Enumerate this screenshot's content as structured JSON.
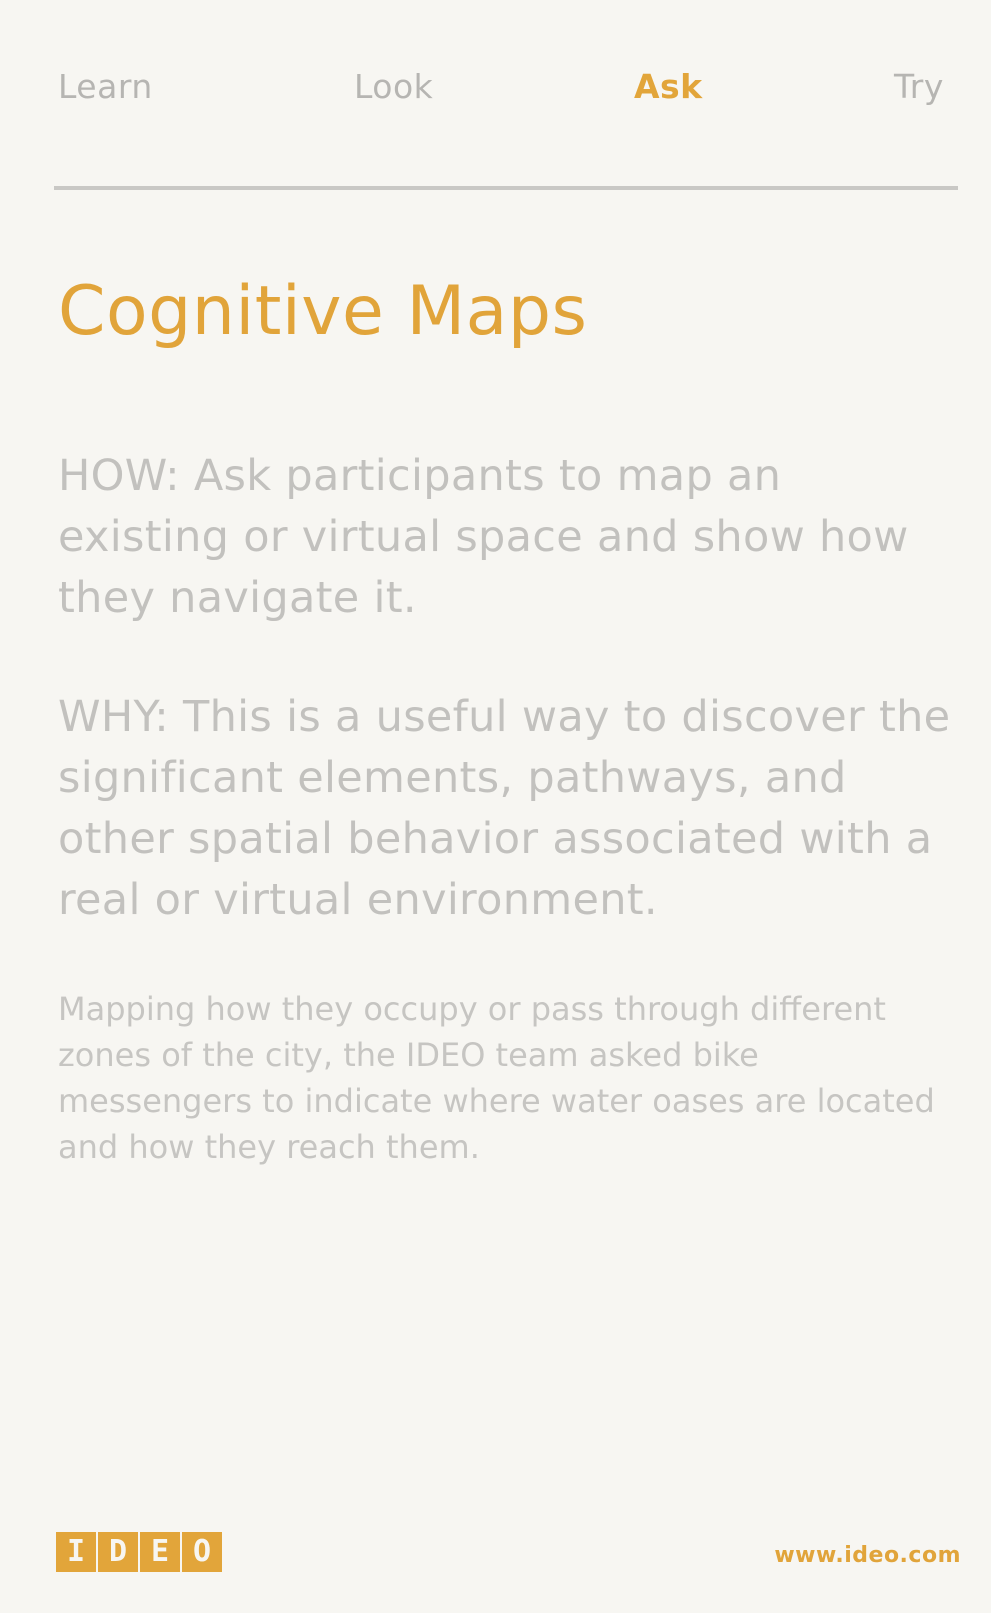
{
  "nav": {
    "tabs": [
      {
        "label": "Learn",
        "active": false
      },
      {
        "label": "Look",
        "active": false
      },
      {
        "label": "Ask",
        "active": true
      },
      {
        "label": "Try",
        "active": false
      }
    ]
  },
  "card": {
    "title": "Cognitive Maps",
    "how": "HOW: Ask participants to map an existing or virtual space and show how they navigate it.",
    "why": "WHY: This is a useful way to discover the significant elements, pathways, and other spatial behavior associated with a real or virtual environment.",
    "example": "Mapping how they occupy or pass through different zones of the city, the IDEO team asked bike messengers to indicate where water oases are located and how they reach them."
  },
  "footer": {
    "logo_letters": [
      "I",
      "D",
      "E",
      "O"
    ],
    "url": "www.ideo.com"
  },
  "colors": {
    "accent": "#e1a43a",
    "body_text": "#c2c1be",
    "background": "#f7f6f2"
  }
}
